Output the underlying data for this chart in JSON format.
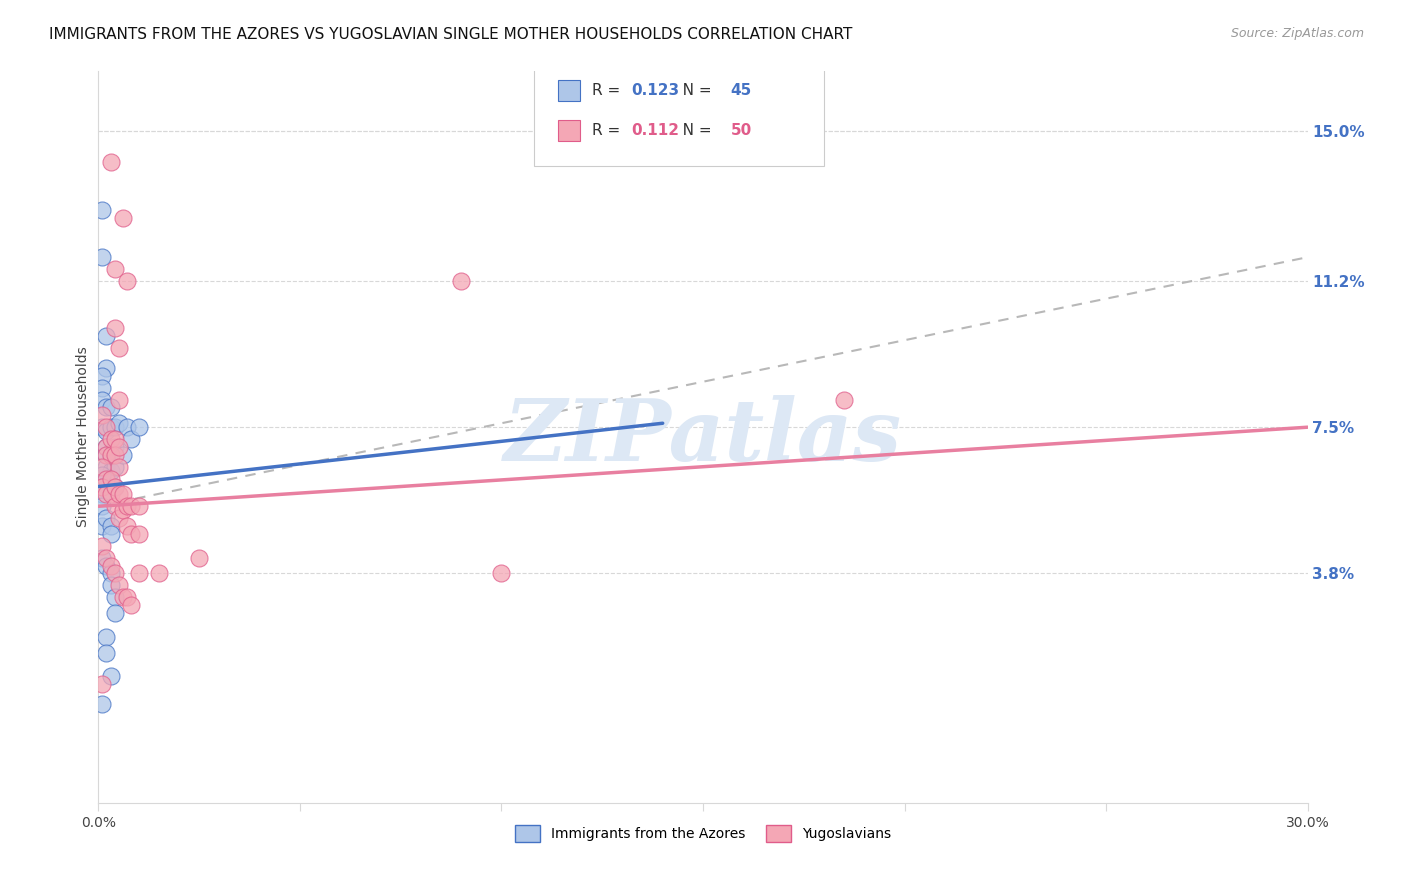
{
  "title": "IMMIGRANTS FROM THE AZORES VS YUGOSLAVIAN SINGLE MOTHER HOUSEHOLDS CORRELATION CHART",
  "source": "Source: ZipAtlas.com",
  "ylabel": "Single Mother Households",
  "xlim": [
    0.0,
    0.3
  ],
  "ylim": [
    -0.02,
    0.165
  ],
  "xtick_positions": [
    0.0,
    0.05,
    0.1,
    0.15,
    0.2,
    0.25,
    0.3
  ],
  "right_ytick_positions": [
    0.038,
    0.075,
    0.112,
    0.15
  ],
  "right_yticklabels": [
    "3.8%",
    "7.5%",
    "11.2%",
    "15.0%"
  ],
  "legend_top": [
    {
      "label_prefix": "R = ",
      "r_val": "0.123",
      "mid": "   N = ",
      "n_val": "45",
      "face_color": "#aec6e8",
      "edge_color": "#4472c4",
      "text_color": "#333333",
      "val_color": "#4472c4"
    },
    {
      "label_prefix": "R = ",
      "r_val": "0.112",
      "mid": "   N = ",
      "n_val": "50",
      "face_color": "#f4a7b5",
      "edge_color": "#e05c8a",
      "text_color": "#333333",
      "val_color": "#e05c8a"
    }
  ],
  "legend_bottom": [
    {
      "label": "Immigrants from the Azores",
      "face_color": "#aec6e8",
      "edge_color": "#4472c4"
    },
    {
      "label": "Yugoslavians",
      "face_color": "#f4a7b5",
      "edge_color": "#e05c8a"
    }
  ],
  "watermark": "ZIPatlas",
  "blue_scatter": [
    [
      0.001,
      0.13
    ],
    [
      0.001,
      0.118
    ],
    [
      0.002,
      0.098
    ],
    [
      0.002,
      0.09
    ],
    [
      0.001,
      0.088
    ],
    [
      0.001,
      0.085
    ],
    [
      0.001,
      0.082
    ],
    [
      0.002,
      0.08
    ],
    [
      0.001,
      0.075
    ],
    [
      0.002,
      0.074
    ],
    [
      0.002,
      0.07
    ],
    [
      0.002,
      0.068
    ],
    [
      0.002,
      0.065
    ],
    [
      0.002,
      0.062
    ],
    [
      0.003,
      0.08
    ],
    [
      0.003,
      0.075
    ],
    [
      0.003,
      0.068
    ],
    [
      0.003,
      0.064
    ],
    [
      0.004,
      0.075
    ],
    [
      0.004,
      0.07
    ],
    [
      0.004,
      0.065
    ],
    [
      0.004,
      0.06
    ],
    [
      0.005,
      0.076
    ],
    [
      0.006,
      0.068
    ],
    [
      0.007,
      0.075
    ],
    [
      0.008,
      0.072
    ],
    [
      0.01,
      0.075
    ],
    [
      0.001,
      0.063
    ],
    [
      0.001,
      0.06
    ],
    [
      0.001,
      0.058
    ],
    [
      0.001,
      0.055
    ],
    [
      0.001,
      0.05
    ],
    [
      0.002,
      0.052
    ],
    [
      0.003,
      0.05
    ],
    [
      0.003,
      0.048
    ],
    [
      0.001,
      0.042
    ],
    [
      0.002,
      0.04
    ],
    [
      0.003,
      0.038
    ],
    [
      0.003,
      0.035
    ],
    [
      0.004,
      0.032
    ],
    [
      0.004,
      0.028
    ],
    [
      0.002,
      0.022
    ],
    [
      0.002,
      0.018
    ],
    [
      0.003,
      0.012
    ],
    [
      0.001,
      0.005
    ]
  ],
  "pink_scatter": [
    [
      0.003,
      0.142
    ],
    [
      0.006,
      0.128
    ],
    [
      0.004,
      0.115
    ],
    [
      0.007,
      0.112
    ],
    [
      0.09,
      0.112
    ],
    [
      0.004,
      0.1
    ],
    [
      0.005,
      0.095
    ],
    [
      0.005,
      0.082
    ],
    [
      0.001,
      0.078
    ],
    [
      0.002,
      0.075
    ],
    [
      0.002,
      0.07
    ],
    [
      0.002,
      0.068
    ],
    [
      0.003,
      0.072
    ],
    [
      0.003,
      0.068
    ],
    [
      0.004,
      0.072
    ],
    [
      0.004,
      0.068
    ],
    [
      0.005,
      0.07
    ],
    [
      0.005,
      0.065
    ],
    [
      0.001,
      0.065
    ],
    [
      0.002,
      0.062
    ],
    [
      0.001,
      0.06
    ],
    [
      0.002,
      0.058
    ],
    [
      0.003,
      0.062
    ],
    [
      0.003,
      0.058
    ],
    [
      0.004,
      0.06
    ],
    [
      0.004,
      0.055
    ],
    [
      0.005,
      0.058
    ],
    [
      0.005,
      0.052
    ],
    [
      0.006,
      0.058
    ],
    [
      0.006,
      0.054
    ],
    [
      0.007,
      0.055
    ],
    [
      0.007,
      0.05
    ],
    [
      0.008,
      0.055
    ],
    [
      0.008,
      0.048
    ],
    [
      0.01,
      0.055
    ],
    [
      0.01,
      0.048
    ],
    [
      0.001,
      0.045
    ],
    [
      0.002,
      0.042
    ],
    [
      0.003,
      0.04
    ],
    [
      0.004,
      0.038
    ],
    [
      0.005,
      0.035
    ],
    [
      0.006,
      0.032
    ],
    [
      0.007,
      0.032
    ],
    [
      0.008,
      0.03
    ],
    [
      0.01,
      0.038
    ],
    [
      0.015,
      0.038
    ],
    [
      0.025,
      0.042
    ],
    [
      0.1,
      0.038
    ],
    [
      0.185,
      0.082
    ],
    [
      0.001,
      0.01
    ]
  ],
  "blue_line": {
    "x": [
      0.0,
      0.14
    ],
    "y": [
      0.06,
      0.076
    ]
  },
  "pink_line": {
    "x": [
      0.0,
      0.3
    ],
    "y": [
      0.055,
      0.075
    ]
  },
  "gray_dash_line": {
    "x": [
      0.0,
      0.3
    ],
    "y": [
      0.055,
      0.118
    ]
  },
  "scatter_size": 150,
  "scatter_alpha": 0.75,
  "blue_face": "#aec6e8",
  "blue_edge": "#4472c4",
  "pink_face": "#f4a7b5",
  "pink_edge": "#e05c8a",
  "blue_line_color": "#4472c4",
  "pink_line_color": "#e87fa0",
  "gray_dash_color": "#b8b8b8",
  "title_fontsize": 11,
  "tick_fontsize": 10,
  "ylabel_fontsize": 10,
  "right_tick_color": "#4472c4",
  "grid_color": "#d8d8d8",
  "background_color": "#ffffff"
}
